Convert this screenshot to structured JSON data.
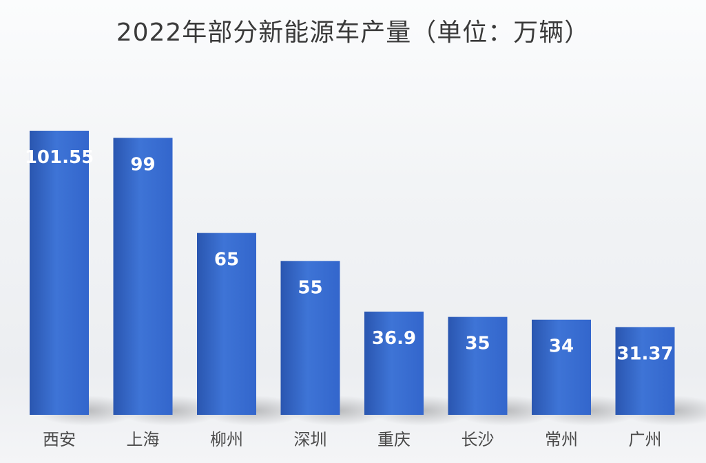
{
  "chart_data": {
    "type": "bar",
    "title": "2022年部分新能源车产量（单位：万辆）",
    "categories": [
      "西安",
      "上海",
      "柳州",
      "深圳",
      "重庆",
      "长沙",
      "常州",
      "广州"
    ],
    "values": [
      101.55,
      99,
      65,
      55,
      36.9,
      35,
      34,
      31.37
    ],
    "value_labels": [
      "101.55",
      "99",
      "65",
      "55",
      "36.9",
      "35",
      "34",
      "31.37"
    ],
    "ylim": [
      0,
      101.55
    ],
    "grid": false,
    "legend": "none",
    "bar_color": "#3366cc",
    "bar_color_light": "#3e74d6",
    "bar_color_dark": "#2a56b0"
  }
}
